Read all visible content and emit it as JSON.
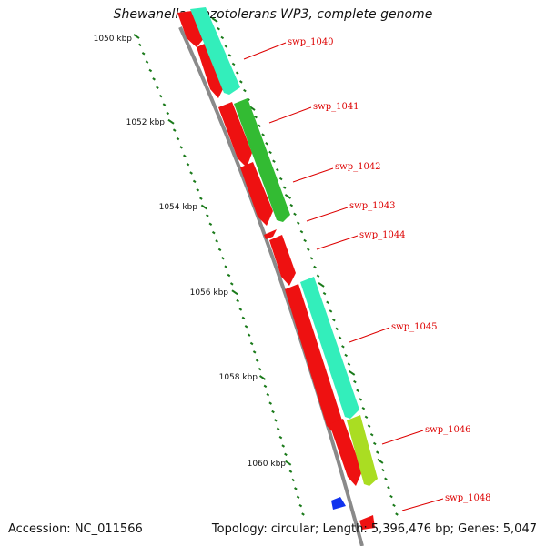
{
  "title": "Shewanella piezotolerans WP3, complete genome",
  "footer": {
    "accession": "Accession: NC_011566",
    "summary": "Topology: circular; Length: 5,396,476 bp; Genes: 5,047"
  },
  "colors": {
    "backbone": "#8a8a8a",
    "tick": "#1a7a1a",
    "cds_red": "#ee1111",
    "cds_aqua": "#33eebb",
    "cds_green": "#33bb33",
    "cds_lime": "#aadd22",
    "cds_blue": "#1133ee",
    "label": "#dd0000"
  },
  "kbp_labels": [
    {
      "kbp": 1050,
      "text": "1050 kbp"
    },
    {
      "kbp": 1052,
      "text": "1052 kbp"
    },
    {
      "kbp": 1054,
      "text": "1054 kbp"
    },
    {
      "kbp": 1056,
      "text": "1056 kbp"
    },
    {
      "kbp": 1058,
      "text": "1058 kbp"
    },
    {
      "kbp": 1060,
      "text": "1060 kbp"
    }
  ],
  "genes": [
    {
      "name": "swp_1040"
    },
    {
      "name": "swp_1041"
    },
    {
      "name": "swp_1042"
    },
    {
      "name": "swp_1043"
    },
    {
      "name": "swp_1044"
    },
    {
      "name": "swp_1045"
    },
    {
      "name": "swp_1046"
    },
    {
      "name": "swp_1048"
    }
  ]
}
